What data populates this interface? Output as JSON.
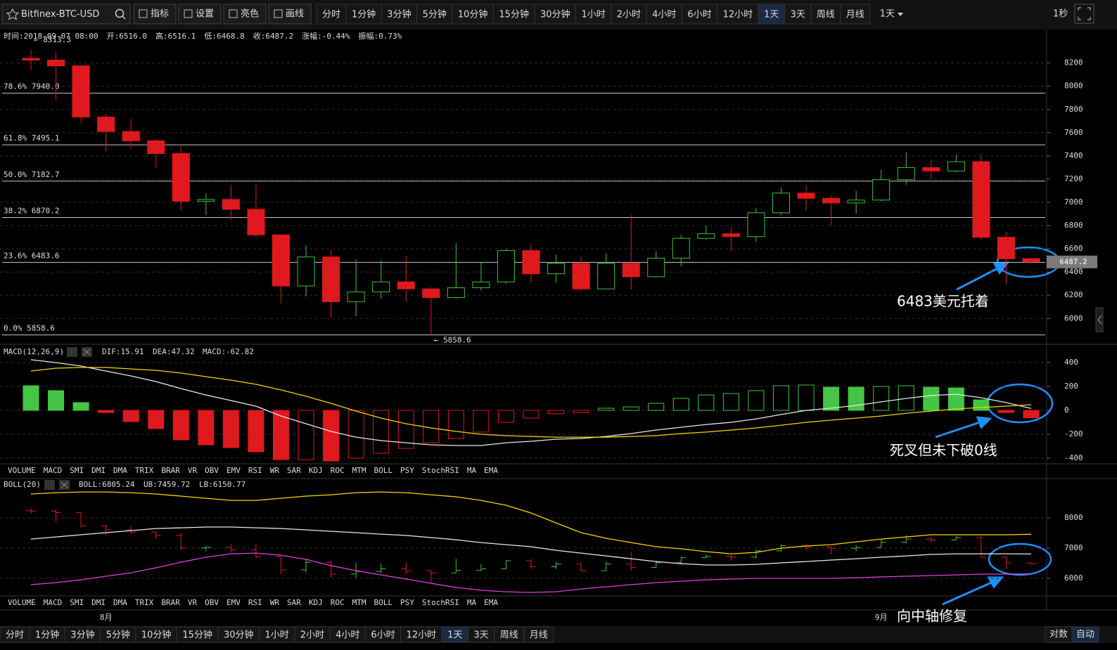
{
  "toolbar": {
    "symbol": "Bitfinex-BTC-USD",
    "buttons": [
      "指标",
      "设置",
      "亮色",
      "画线"
    ],
    "periods": [
      "分时",
      "1分钟",
      "3分钟",
      "5分钟",
      "10分钟",
      "15分钟",
      "30分钟",
      "1小时",
      "2小时",
      "4小时",
      "6小时",
      "12小时",
      "1天",
      "3天",
      "周线",
      "月线"
    ],
    "active": "1天",
    "dropdown": "1天",
    "refresh": "1秒"
  },
  "info": [
    {
      "label": "时间:",
      "value": "2018-09-07 08:00"
    },
    {
      "label": "开:",
      "value": "6516.0"
    },
    {
      "label": "高:",
      "value": "6516.1"
    },
    {
      "label": "低:",
      "value": "6468.8"
    },
    {
      "label": "收:",
      "value": "6487.2"
    },
    {
      "label": "涨幅:",
      "value": "-0.44%",
      "color": "#ff3b3b"
    },
    {
      "label": "振幅:",
      "value": "0.73%"
    }
  ],
  "indicator_tabs": [
    "VOLUME",
    "MACD",
    "SMI",
    "DMI",
    "DMA",
    "TRIX",
    "BRAR",
    "VR",
    "OBV",
    "EMV",
    "RSI",
    "WR",
    "SAR",
    "KDJ",
    "ROC",
    "MTM",
    "BOLL",
    "PSY",
    "StochRSI",
    "MA",
    "EMA"
  ],
  "bottom_toolbar": {
    "right": [
      "对数",
      "自动"
    ]
  },
  "chart_data": [
    {
      "type": "candlestick",
      "categories": [
        null,
        null,
        null,
        "8月",
        null,
        null,
        null,
        null,
        null,
        null,
        null,
        null,
        null,
        null,
        null,
        null,
        null,
        null,
        null,
        null,
        null,
        null,
        null,
        null,
        null,
        null,
        null,
        null,
        null,
        null,
        null,
        null,
        null,
        null,
        "9月",
        null,
        null,
        null,
        null,
        null,
        null
      ],
      "open": [
        8240,
        8225,
        8175,
        7735,
        7610,
        7530,
        7420,
        7010,
        7025,
        6940,
        6720,
        6280,
        6530,
        6145,
        6230,
        6315,
        6255,
        6180,
        6265,
        6315,
        6585,
        6385,
        6475,
        6255,
        6475,
        6360,
        6520,
        6690,
        6730,
        6705,
        6910,
        7080,
        7035,
        6995,
        7020,
        7195,
        7300,
        7270,
        7350,
        6700,
        6516.0
      ],
      "high": [
        8313.3,
        8290,
        8180,
        7760,
        7720,
        7540,
        7490,
        7080,
        7150,
        7150,
        6720,
        6630,
        6590,
        6510,
        6500,
        6540,
        6270,
        6650,
        6480,
        6600,
        6640,
        6550,
        6530,
        6560,
        6890,
        6580,
        6720,
        6800,
        6790,
        6950,
        7130,
        7150,
        7060,
        7100,
        7280,
        7430,
        7370,
        7410,
        7400,
        6740,
        6516.1
      ],
      "low": [
        8140,
        7880,
        7680,
        7440,
        7460,
        7300,
        6930,
        6890,
        6850,
        6690,
        6130,
        6190,
        6010,
        6020,
        6170,
        6140,
        5858.6,
        6170,
        6240,
        6300,
        6310,
        6310,
        6240,
        6250,
        6250,
        6350,
        6450,
        6680,
        6580,
        6660,
        6890,
        6930,
        6800,
        6900,
        7010,
        7150,
        7200,
        7260,
        6680,
        6300,
        6468.8
      ],
      "close": [
        8225,
        8175,
        7735,
        7610,
        7530,
        7420,
        7010,
        7025,
        6940,
        6720,
        6280,
        6530,
        6145,
        6230,
        6315,
        6255,
        6180,
        6265,
        6315,
        6585,
        6385,
        6475,
        6255,
        6475,
        6360,
        6520,
        6690,
        6730,
        6705,
        6910,
        7080,
        7035,
        6995,
        7020,
        7195,
        7300,
        7270,
        7350,
        6700,
        6515,
        6487.2
      ],
      "up_color": "#3fbf3f",
      "down_color": "#e0191f",
      "ylim": [
        5790,
        8470
      ],
      "yticks": [
        6000,
        6200,
        6400,
        6600,
        6800,
        7000,
        7200,
        7400,
        7600,
        7800,
        8000,
        8200
      ],
      "grid": true,
      "fib_levels": [
        {
          "value": 7940.0,
          "label": "78.6% 7940.0"
        },
        {
          "value": 7495.1,
          "label": "61.8% 7495.1"
        },
        {
          "value": 7182.7,
          "label": "50.0% 7182.7"
        },
        {
          "value": 6870.2,
          "label": "38.2% 6870.2"
        },
        {
          "value": 6483.6,
          "label": "23.6% 6483.6"
        },
        {
          "value": 5858.6,
          "label": "0.0% 5858.6"
        }
      ],
      "extremes": [
        {
          "value": 8313.3,
          "label": "← 8313.3"
        },
        {
          "value": 5858.6,
          "label": "← 5858.6"
        }
      ],
      "last_price": 6487.2,
      "annotation": "6483美元托着"
    },
    {
      "type": "macd",
      "title": "MACD(12,26,9)",
      "series": [
        {
          "name": "DIF:15.91",
          "color": "#e8e8e8",
          "values": [
            424,
            400,
            371,
            329,
            288,
            241,
            182,
            129,
            82,
            35,
            -47,
            -112,
            -176,
            -224,
            -253,
            -271,
            -288,
            -294,
            -294,
            -271,
            -259,
            -241,
            -235,
            -218,
            -194,
            -165,
            -141,
            -118,
            -100,
            -71,
            -35,
            0,
            18,
            41,
            71,
            100,
            124,
            135,
            106,
            65,
            15.91
          ]
        },
        {
          "name": "DEA:47.32",
          "color": "#f2d600",
          "values": [
            329,
            353,
            359,
            359,
            347,
            335,
            312,
            282,
            253,
            218,
            171,
            118,
            59,
            -6,
            -65,
            -112,
            -147,
            -176,
            -200,
            -212,
            -218,
            -224,
            -224,
            -224,
            -218,
            -212,
            -194,
            -182,
            -165,
            -147,
            -124,
            -100,
            -82,
            -65,
            -47,
            -24,
            -6,
            12,
            24,
            35,
            47.32
          ]
        }
      ],
      "histogram": {
        "name": "MACD:-62.82",
        "color": "#e040e0",
        "up_color": "#45c545",
        "down_color": "#e0191f",
        "values": [
          206,
          165,
          65,
          -18,
          -94,
          -153,
          -247,
          -288,
          -312,
          -347,
          -412,
          -412,
          -424,
          -400,
          -359,
          -318,
          -271,
          -235,
          -182,
          -100,
          -65,
          -29,
          -18,
          18,
          29,
          59,
          100,
          129,
          141,
          165,
          206,
          212,
          194,
          194,
          200,
          206,
          194,
          188,
          88,
          -18,
          -62.82
        ]
      },
      "ylim": [
        -447,
        541
      ],
      "yticks": [
        400,
        200,
        0,
        -200,
        -400
      ],
      "grid": true,
      "active_tab": "MACD",
      "annotation": "死叉但未下破0线"
    },
    {
      "type": "boll",
      "title": "BOLL(20)",
      "series": [
        {
          "name": "BOLL:6805.24",
          "color": "#e8e8e8",
          "values": [
            7302,
            7372,
            7442,
            7512,
            7581,
            7651,
            7674,
            7698,
            7698,
            7674,
            7651,
            7605,
            7558,
            7512,
            7465,
            7419,
            7349,
            7279,
            7186,
            7116,
            7047,
            6930,
            6837,
            6744,
            6651,
            6558,
            6488,
            6442,
            6442,
            6465,
            6512,
            6558,
            6605,
            6651,
            6698,
            6744,
            6791,
            6814,
            6814,
            6814,
            6805.24
          ]
        },
        {
          "name": "UB:7459.72",
          "color": "#f2d600",
          "values": [
            8791,
            8837,
            8860,
            8860,
            8837,
            8791,
            8721,
            8651,
            8581,
            8581,
            8651,
            8721,
            8767,
            8837,
            8860,
            8837,
            8767,
            8698,
            8581,
            8419,
            8163,
            7837,
            7512,
            7326,
            7186,
            7047,
            6977,
            6884,
            6814,
            6860,
            7000,
            7070,
            7116,
            7209,
            7302,
            7372,
            7442,
            7442,
            7442,
            7442,
            7459.72
          ]
        },
        {
          "name": "LB:6150.77",
          "color": "#e040e0",
          "values": [
            5791,
            5860,
            5953,
            6070,
            6186,
            6349,
            6535,
            6698,
            6814,
            6837,
            6767,
            6628,
            6419,
            6256,
            6116,
            5977,
            5837,
            5698,
            5605,
            5558,
            5535,
            5558,
            5651,
            5721,
            5791,
            5860,
            5907,
            5953,
            5977,
            6000,
            6000,
            6000,
            6000,
            6023,
            6047,
            6070,
            6093,
            6116,
            6140,
            6140,
            6150.77
          ]
        }
      ],
      "ylim": [
        5420,
        9280
      ],
      "yticks": [
        6000,
        7000,
        8000
      ],
      "grid": true,
      "active_tab": "BOLL",
      "annotation": "向中轴修复"
    }
  ]
}
